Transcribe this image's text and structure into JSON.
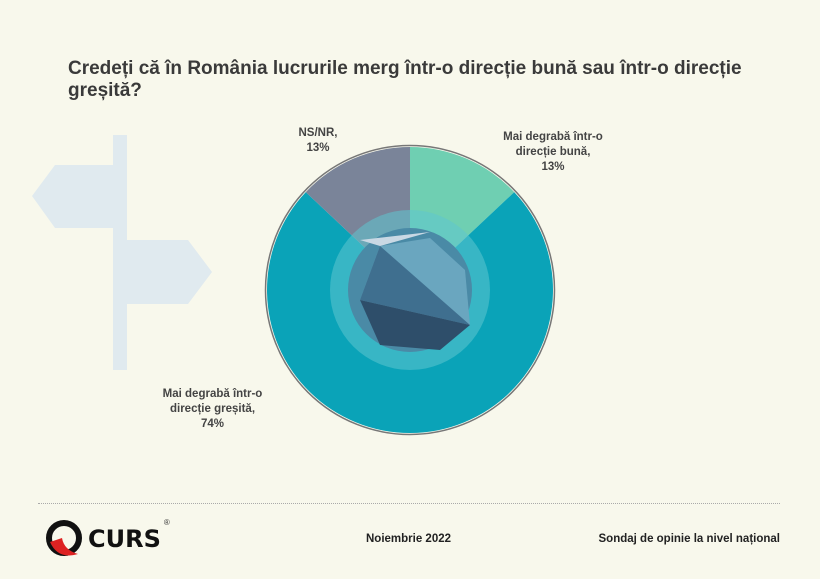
{
  "chart_data": {
    "type": "pie",
    "title": "Credeți că în România lucrurile merg într-o direcție bună sau într-o direcție greșită?",
    "slices": [
      {
        "label": "Mai degrabă într-o direcție bună",
        "value": 13,
        "value_label": "13%",
        "color": "#6fcfb2"
      },
      {
        "label": "Mai degrabă într-o direcție greșită",
        "value": 74,
        "value_label": "74%",
        "color": "#0aa3b8"
      },
      {
        "label": "NS/NR",
        "value": 13,
        "value_label": "13%",
        "color": "#7a8499"
      }
    ],
    "start_angle": "top, clockwise",
    "donut": true
  },
  "footer": {
    "brand": "CURS",
    "registered": "®",
    "date": "Noiembrie 2022",
    "survey": "Sondaj de opinie la nivel național"
  }
}
